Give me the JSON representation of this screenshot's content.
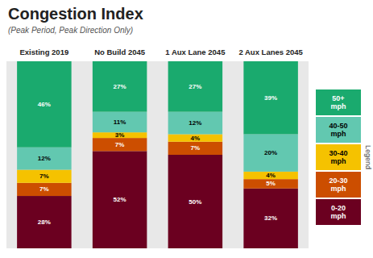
{
  "chart_data": {
    "type": "bar",
    "stacked": true,
    "title": "Congestion Index",
    "subtitle": "(Peak Period, Peak Direction Only)",
    "categories": [
      "Existing 2019",
      "No Build 2045",
      "1 Aux Lane 2045",
      "2 Aux Lanes 2045"
    ],
    "series": [
      {
        "name": "0-20\nmph",
        "color": "#6b0020",
        "values": [
          28,
          52,
          50,
          32
        ],
        "value_labels": [
          "28%",
          "52%",
          "50%",
          "32%"
        ]
      },
      {
        "name": "20-30\nmph",
        "color": "#cc4e00",
        "values": [
          7,
          7,
          7,
          5
        ],
        "value_labels": [
          "7%",
          "7%",
          "7%",
          "5%"
        ]
      },
      {
        "name": "30-40\nmph",
        "color": "#f5c200",
        "values": [
          7,
          3,
          4,
          4
        ],
        "value_labels": [
          "7%",
          "3%",
          "4%",
          "4%"
        ]
      },
      {
        "name": "40-50\nmph",
        "color": "#62c8b0",
        "values": [
          12,
          11,
          12,
          20
        ],
        "value_labels": [
          "12%",
          "11%",
          "12%",
          "20%"
        ]
      },
      {
        "name": "50+\nmph",
        "color": "#1aaa6e",
        "values": [
          46,
          27,
          27,
          39
        ],
        "value_labels": [
          "46%",
          "27%",
          "27%",
          "39%"
        ]
      }
    ],
    "legend_title": "Legend",
    "ylim": [
      0,
      100
    ],
    "data_labels": true,
    "tick_labels": "x",
    "legend": "right"
  }
}
